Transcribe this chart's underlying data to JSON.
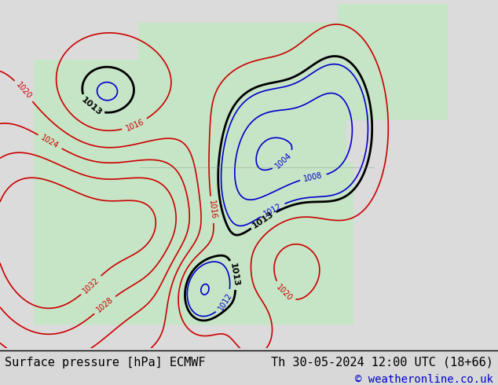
{
  "title_left": "Surface pressure [hPa] ECMWF",
  "title_right": "Th 30-05-2024 12:00 UTC (18+66)",
  "copyright": "© weatheronline.co.uk",
  "bg_color": "#d8d8d8",
  "land_color_rgb": [
    0.78,
    0.9,
    0.78
  ],
  "ocean_color_rgb": [
    0.86,
    0.86,
    0.86
  ],
  "isobar_color_low": "#0000cc",
  "isobar_color_high": "#cc0000",
  "isobar_color_1013": "#000000",
  "footer_bg": "#ffffff",
  "footer_text_color": "#000000",
  "copyright_color": "#0000cc",
  "font_size_footer": 11,
  "figwidth": 6.34,
  "figheight": 4.9,
  "dpi": 100
}
